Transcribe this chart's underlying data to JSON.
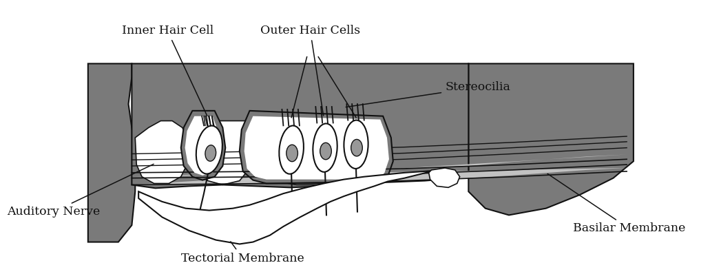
{
  "bg_color": "#ffffff",
  "gray_dark": "#7a7a7a",
  "gray_mid": "#989898",
  "gray_light": "#c2c2c2",
  "outline_color": "#111111",
  "white": "#ffffff",
  "labels": {
    "tectorial_membrane": "Tectorial Membrane",
    "stereocilia": "Stereocilia",
    "auditory_nerve": "Auditory Nerve",
    "inner_hair_cell": "Inner Hair Cell",
    "outer_hair_cells": "Outer Hair Cells",
    "basilar_membrane": "Basilar Membrane"
  },
  "label_fontsize": 12.5
}
